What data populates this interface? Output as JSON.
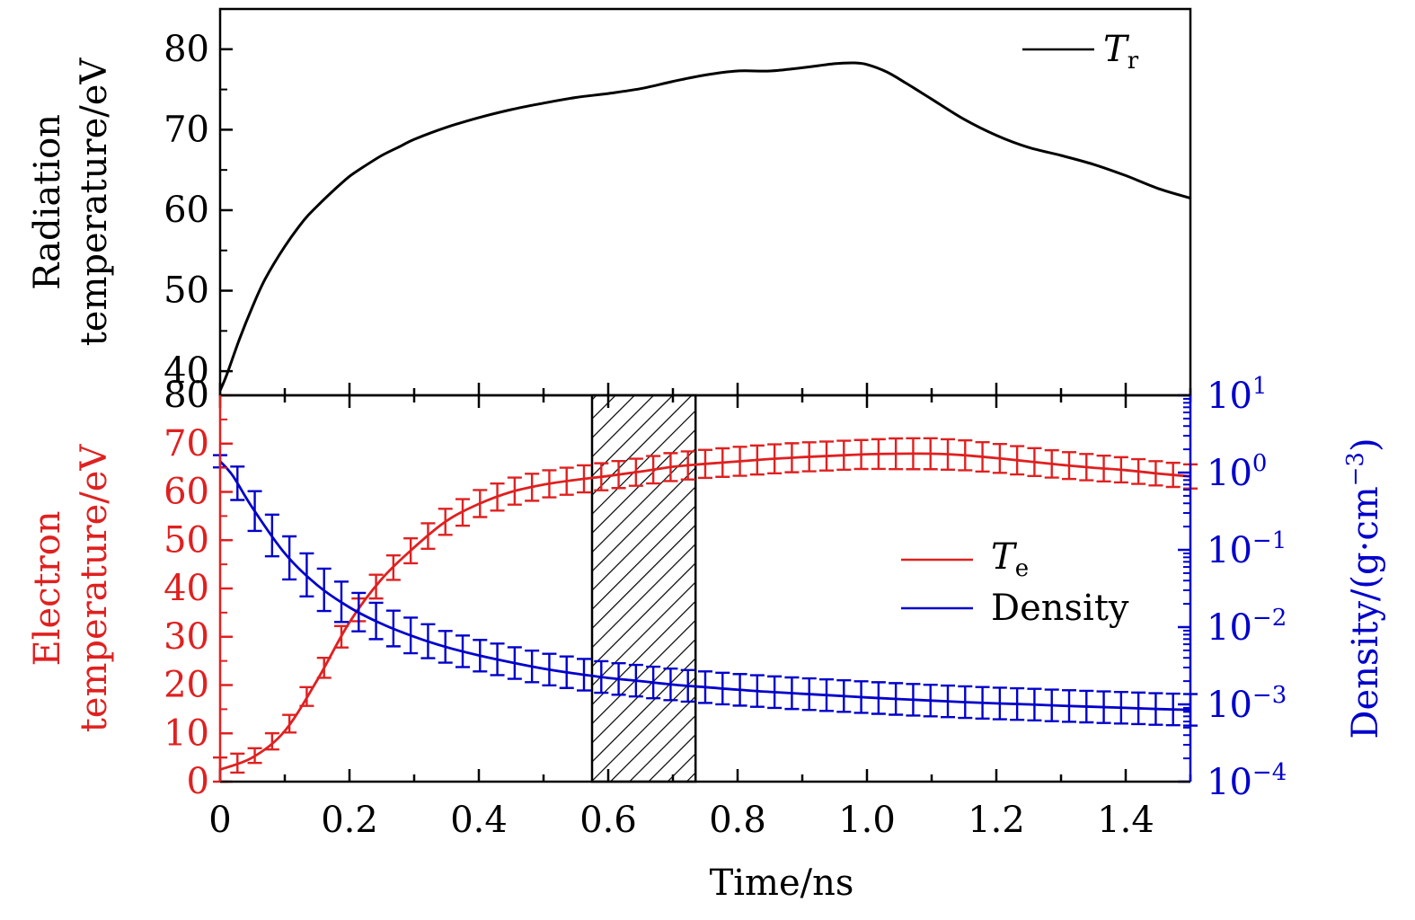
{
  "chart_data": [
    {
      "panel": "top",
      "type": "line",
      "ylabel_lines": [
        "Radiation",
        "temperature/eV"
      ],
      "ylim": [
        37,
        85
      ],
      "y_ticks": [
        "40",
        "50",
        "60",
        "70",
        "80"
      ],
      "xlim": [
        0,
        1.5
      ],
      "legend": {
        "position": "top-right",
        "label_main": "T",
        "label_sub": "r"
      },
      "colors": {
        "line": "#000000",
        "axis": "#000000"
      },
      "series": [
        {
          "legend_key": "T_r",
          "x": [
            0,
            0.01,
            0.03,
            0.05,
            0.07,
            0.1,
            0.13,
            0.15,
            0.18,
            0.2,
            0.22,
            0.25,
            0.28,
            0.3,
            0.35,
            0.4,
            0.45,
            0.5,
            0.55,
            0.6,
            0.65,
            0.7,
            0.75,
            0.8,
            0.85,
            0.9,
            0.95,
            0.98,
            1.0,
            1.03,
            1.06,
            1.1,
            1.15,
            1.2,
            1.25,
            1.3,
            1.35,
            1.4,
            1.45,
            1.5
          ],
          "y": [
            37.6,
            39.5,
            44,
            48,
            51.5,
            55.5,
            58.8,
            60.5,
            62.8,
            64.2,
            65.3,
            66.8,
            68,
            68.8,
            70.3,
            71.5,
            72.5,
            73.3,
            74,
            74.5,
            75.1,
            76,
            76.8,
            77.3,
            77.3,
            77.7,
            78.2,
            78.3,
            78.1,
            77.2,
            75.8,
            73.8,
            71.3,
            69.3,
            67.8,
            66.8,
            65.7,
            64.3,
            62.7,
            61.5
          ]
        }
      ]
    },
    {
      "panel": "bottom",
      "type": "line",
      "xlabel": "Time/ns",
      "xlim": [
        0,
        1.5
      ],
      "x_ticks": [
        "0",
        "0.2",
        "0.4",
        "0.6",
        "0.8",
        "1.0",
        "1.2",
        "1.4"
      ],
      "ylabel_left_lines": [
        "Electron",
        "temperature/eV"
      ],
      "ylim_left": [
        0,
        80
      ],
      "y_left_ticks": [
        "0",
        "10",
        "20",
        "30",
        "40",
        "50",
        "60",
        "70",
        "80"
      ],
      "ylabel_right": "Density/(g·cm",
      "ylabel_right_exp": "−3",
      "ylabel_right_close": ")",
      "y_right_scale": "log",
      "ylim_right": [
        0.0001,
        10
      ],
      "y_right_ticks": [
        {
          "base": "10",
          "exp": "1"
        },
        {
          "base": "10",
          "exp": "0"
        },
        {
          "base": "10",
          "exp": "−1"
        },
        {
          "base": "10",
          "exp": "−2"
        },
        {
          "base": "10",
          "exp": "−3"
        },
        {
          "base": "10",
          "exp": "−4"
        }
      ],
      "shaded_region": {
        "x": [
          0.575,
          0.735
        ],
        "pattern": "diagonal hatch"
      },
      "legend": {
        "position": "center-right",
        "entries": [
          {
            "main": "T",
            "sub": "e",
            "color": "#e02020"
          },
          {
            "main": "Density",
            "sub": "",
            "color": "#0000cc"
          }
        ]
      },
      "colors": {
        "temperature": "#e02020",
        "density": "#0000cc",
        "axis": "#000000"
      },
      "temperature_curve": {
        "x": [
          0,
          0.05,
          0.1,
          0.15,
          0.2,
          0.25,
          0.3,
          0.35,
          0.4,
          0.45,
          0.5,
          0.55,
          0.6,
          0.65,
          0.7,
          0.75,
          0.8,
          0.85,
          0.9,
          0.95,
          1.0,
          1.05,
          1.1,
          1.15,
          1.2,
          1.25,
          1.3,
          1.35,
          1.4,
          1.45,
          1.5
        ],
        "y": [
          2.5,
          5,
          10.5,
          21,
          33,
          42,
          48.5,
          54,
          57.5,
          60,
          61.5,
          62.5,
          63.3,
          64.2,
          65.2,
          65.8,
          66.3,
          66.8,
          67.2,
          67.5,
          67.8,
          67.9,
          67.9,
          67.6,
          67,
          66.3,
          65.6,
          65,
          64.5,
          63.8,
          63.2
        ],
        "error_halfwidth": [
          2.5,
          1.5,
          1.8,
          2,
          2.3,
          2.5,
          2.6,
          2.7,
          2.8,
          2.8,
          2.8,
          2.8,
          2.8,
          2.8,
          2.9,
          2.9,
          3,
          3,
          3,
          3,
          3,
          3.2,
          3.2,
          3.1,
          3,
          2.9,
          2.8,
          2.7,
          2.6,
          2.5,
          2.5
        ]
      },
      "density_curve": {
        "x": [
          0,
          0.02,
          0.05,
          0.1,
          0.15,
          0.2,
          0.25,
          0.3,
          0.35,
          0.4,
          0.45,
          0.5,
          0.55,
          0.6,
          0.65,
          0.7,
          0.75,
          0.8,
          0.85,
          0.9,
          0.95,
          1.0,
          1.05,
          1.1,
          1.15,
          1.2,
          1.25,
          1.3,
          1.35,
          1.4,
          1.45,
          1.5
        ],
        "y": [
          1.4,
          0.9,
          0.35,
          0.09,
          0.035,
          0.018,
          0.011,
          0.0075,
          0.0055,
          0.0043,
          0.0035,
          0.0029,
          0.0025,
          0.0022,
          0.002,
          0.0018,
          0.00167,
          0.00155,
          0.00145,
          0.00137,
          0.0013,
          0.00123,
          0.00117,
          0.00112,
          0.00107,
          0.00103,
          0.001,
          0.00096,
          0.00093,
          0.0009,
          0.00087,
          0.00085
        ],
        "error_factor": [
          1.2,
          1.6,
          1.8,
          1.9,
          1.9,
          1.8,
          1.7,
          1.7,
          1.6,
          1.6,
          1.6,
          1.6,
          1.6,
          1.6,
          1.6,
          1.6,
          1.6,
          1.6,
          1.6,
          1.6,
          1.6,
          1.6,
          1.6,
          1.6,
          1.6,
          1.6,
          1.6,
          1.6,
          1.6,
          1.6,
          1.6,
          1.6
        ]
      }
    }
  ]
}
